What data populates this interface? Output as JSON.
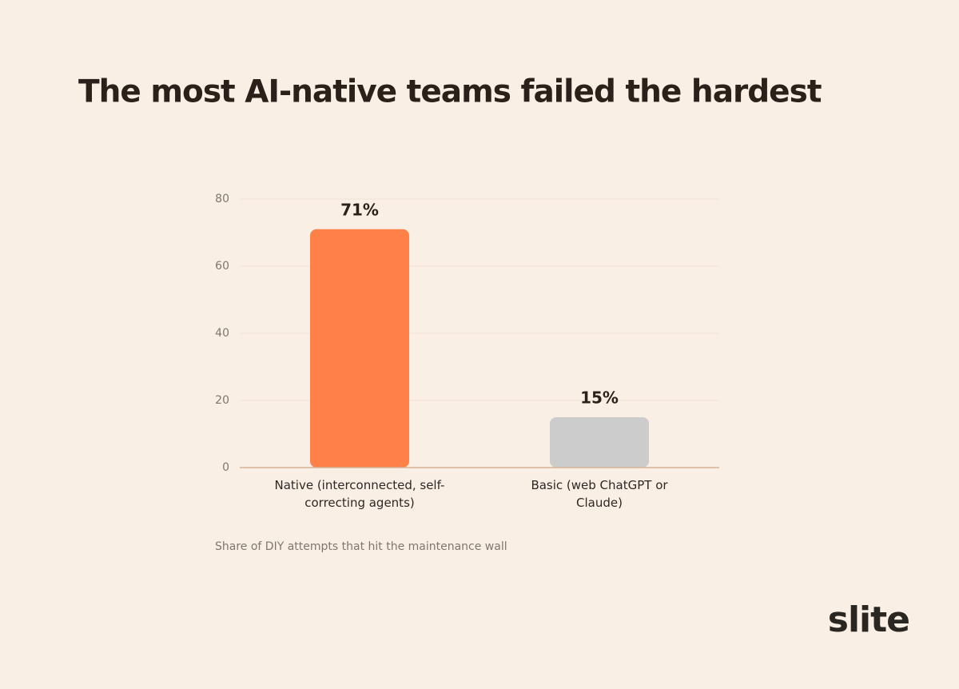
{
  "chart_data": {
    "type": "bar",
    "title": "The most AI-native teams failed the hardest",
    "categories": [
      "Native (interconnected, self-correcting agents)",
      "Basic (web ChatGPT or Claude)"
    ],
    "values": [
      71,
      15
    ],
    "value_labels": [
      "71%",
      "15%"
    ],
    "colors": [
      "#ff8148",
      "#cccccc"
    ],
    "ylim": [
      0,
      80
    ],
    "yticks": [
      0,
      20,
      40,
      60,
      80
    ],
    "grid": true,
    "caption": "Share of DIY attempts that hit the maintenance wall",
    "logo": "slite"
  }
}
